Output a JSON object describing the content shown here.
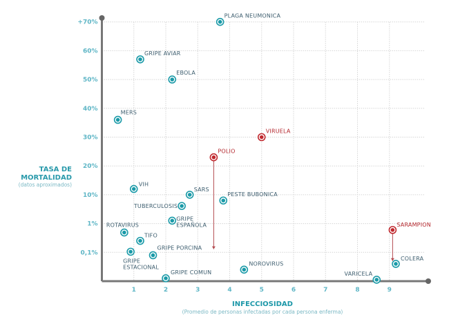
{
  "chart_data": {
    "type": "scatter",
    "title": "",
    "xlabel": "INFECCIOSIDAD",
    "xlabel_sub": "(Promedio de personas infectadas por cada persona enferma)",
    "ylabel": "TASA DE MORTALIDAD",
    "ylabel_sub": "(datos aproximados)",
    "x_ticks": [
      "1",
      "2",
      "3",
      "4",
      "5",
      "6",
      "7",
      "8",
      "9"
    ],
    "y_ticks": [
      {
        "value": 0.1,
        "label": "0,1%"
      },
      {
        "value": 1,
        "label": "1%"
      },
      {
        "value": 10,
        "label": "10%"
      },
      {
        "value": 20,
        "label": "20%"
      },
      {
        "value": 30,
        "label": "30%"
      },
      {
        "value": 40,
        "label": "40%"
      },
      {
        "value": 50,
        "label": "50%"
      },
      {
        "value": 60,
        "label": "60%"
      },
      {
        "value": 70,
        "label": "+70%"
      }
    ],
    "y_scale": "non-linear (0, 0.1, 1, 10, 20 … 70 evenly spaced)",
    "xlim": [
      0,
      10.2
    ],
    "grid": true,
    "colors": {
      "normal": "#1a9aa8",
      "vaccine": "#c0282e",
      "axis": "#777777"
    },
    "points": [
      {
        "name": "PLAGA NEUMONICA",
        "x": 3.7,
        "y": 70,
        "color": "normal"
      },
      {
        "name": "GRIPE AVIAR",
        "x": 1.2,
        "y": 57,
        "color": "normal"
      },
      {
        "name": "EBOLA",
        "x": 2.2,
        "y": 50,
        "color": "normal"
      },
      {
        "name": "MERS",
        "x": 0.5,
        "y": 36,
        "color": "normal"
      },
      {
        "name": "VIRUELA",
        "x": 5.0,
        "y": 30,
        "color": "vaccine"
      },
      {
        "name": "POLIO",
        "x": 3.5,
        "y": 23,
        "color": "vaccine",
        "arrow_to": 0.2
      },
      {
        "name": "VIH",
        "x": 1.0,
        "y": 12,
        "color": "normal"
      },
      {
        "name": "SARS",
        "x": 2.75,
        "y": 10,
        "color": "normal"
      },
      {
        "name": "PESTE BUBONICA",
        "x": 3.8,
        "y": 8.2,
        "color": "normal"
      },
      {
        "name": "TUBERCULOSIS",
        "x": 2.5,
        "y": 6.5,
        "color": "normal"
      },
      {
        "name": "GRIPE ESPAÑOLA",
        "x": 2.2,
        "y": 1.9,
        "color": "normal"
      },
      {
        "name": "ROTAVIRUS",
        "x": 0.7,
        "y": 0.72,
        "color": "normal"
      },
      {
        "name": "TIFO",
        "x": 1.2,
        "y": 0.46,
        "color": "normal"
      },
      {
        "name": "GRIPE ESTACIONAL",
        "x": 0.9,
        "y": 0.12,
        "color": "normal"
      },
      {
        "name": "GRIPE PORCINA",
        "x": 1.6,
        "y": 0.09,
        "color": "normal"
      },
      {
        "name": "GRIPE COMUN",
        "x": 2.0,
        "y": 0.01,
        "color": "normal"
      },
      {
        "name": "NOROVIRUS",
        "x": 4.45,
        "y": 0.04,
        "color": "normal"
      },
      {
        "name": "VARICELA",
        "x": 8.6,
        "y": 0.005,
        "color": "normal"
      },
      {
        "name": "COLERA",
        "x": 9.2,
        "y": 0.06,
        "color": "normal"
      },
      {
        "name": "SARAMPION",
        "x": 9.1,
        "y": 0.8,
        "color": "vaccine",
        "arrow_to": 0.07
      }
    ]
  }
}
